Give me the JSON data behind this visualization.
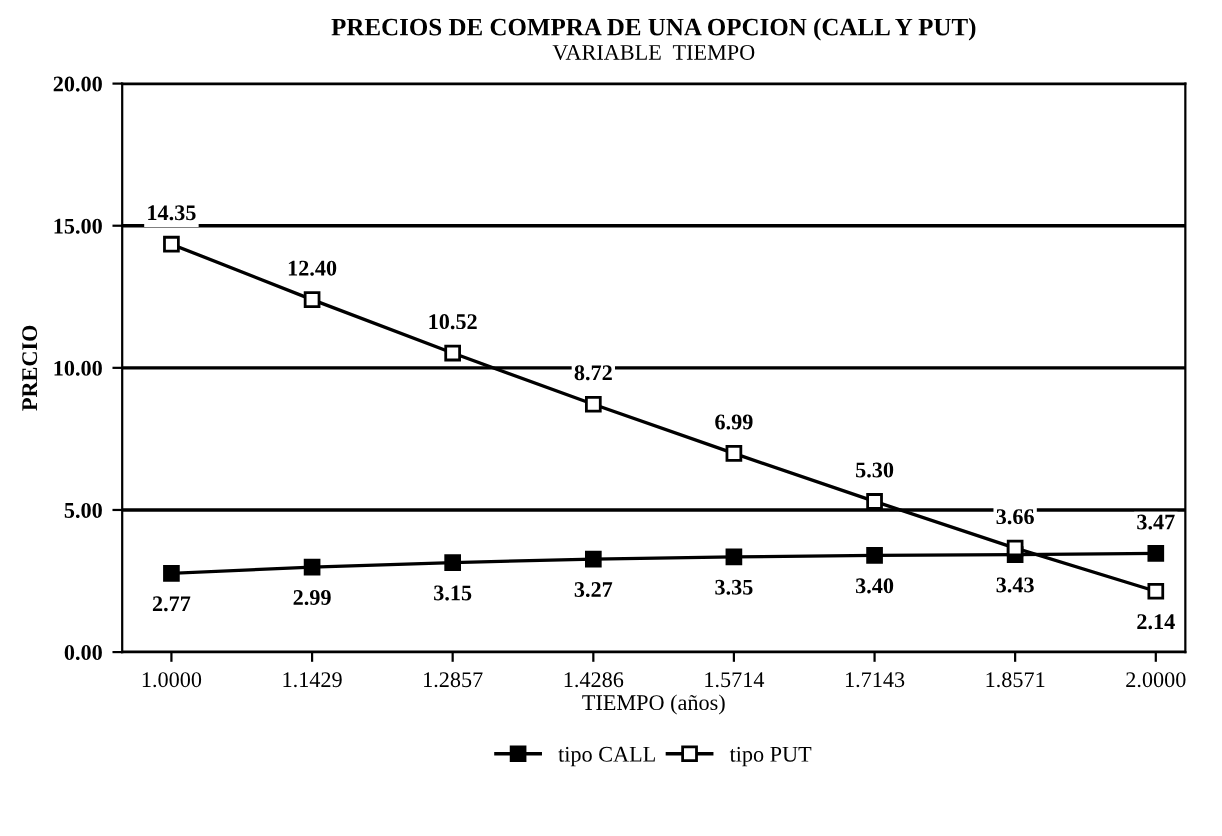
{
  "chart_data": {
    "type": "line",
    "title": "PRECIOS DE COMPRA DE UNA OPCION (CALL Y PUT)",
    "subtitle": "VARIABLE  TIEMPO",
    "xlabel": "TIEMPO (años)",
    "ylabel": "PRECIO",
    "x": [
      1.0,
      1.1429,
      1.2857,
      1.4286,
      1.5714,
      1.7143,
      1.8571,
      2.0
    ],
    "series": [
      {
        "name": "tipo CALL",
        "color": "#000000",
        "values": [
          2.77,
          2.99,
          3.15,
          3.27,
          3.35,
          3.4,
          3.43,
          3.47
        ],
        "value_labels": [
          "2.77",
          "2.99",
          "3.15",
          "3.27",
          "3.35",
          "3.40",
          "3.43",
          "3.47"
        ]
      },
      {
        "name": "tipo PUT",
        "color": "#000000",
        "values": [
          14.35,
          12.4,
          10.52,
          8.72,
          6.99,
          5.3,
          3.66,
          2.14
        ],
        "value_labels": [
          "14.35",
          "12.40",
          "10.52",
          "8.72",
          "6.99",
          "5.30",
          "3.66",
          "2.14"
        ]
      }
    ],
    "marker": "square",
    "xlim": [
      0.95,
      2.03
    ],
    "xticks": [
      {
        "value": 1.0,
        "label": "1.0000"
      },
      1.1429,
      1.2857,
      1.4286,
      1.5714,
      1.7143,
      1.8571,
      {
        "value": 2.0,
        "label": "2.0000"
      }
    ],
    "ylim": [
      0,
      20
    ],
    "yticks": [
      {
        "value": 0,
        "label": "0.00"
      },
      {
        "value": 5,
        "label": "5.00"
      },
      {
        "value": 10,
        "label": "10.00"
      },
      {
        "value": 15,
        "label": "15.00"
      },
      {
        "value": 20,
        "label": "20.00"
      }
    ],
    "grid": "y",
    "legend": "bottom"
  }
}
